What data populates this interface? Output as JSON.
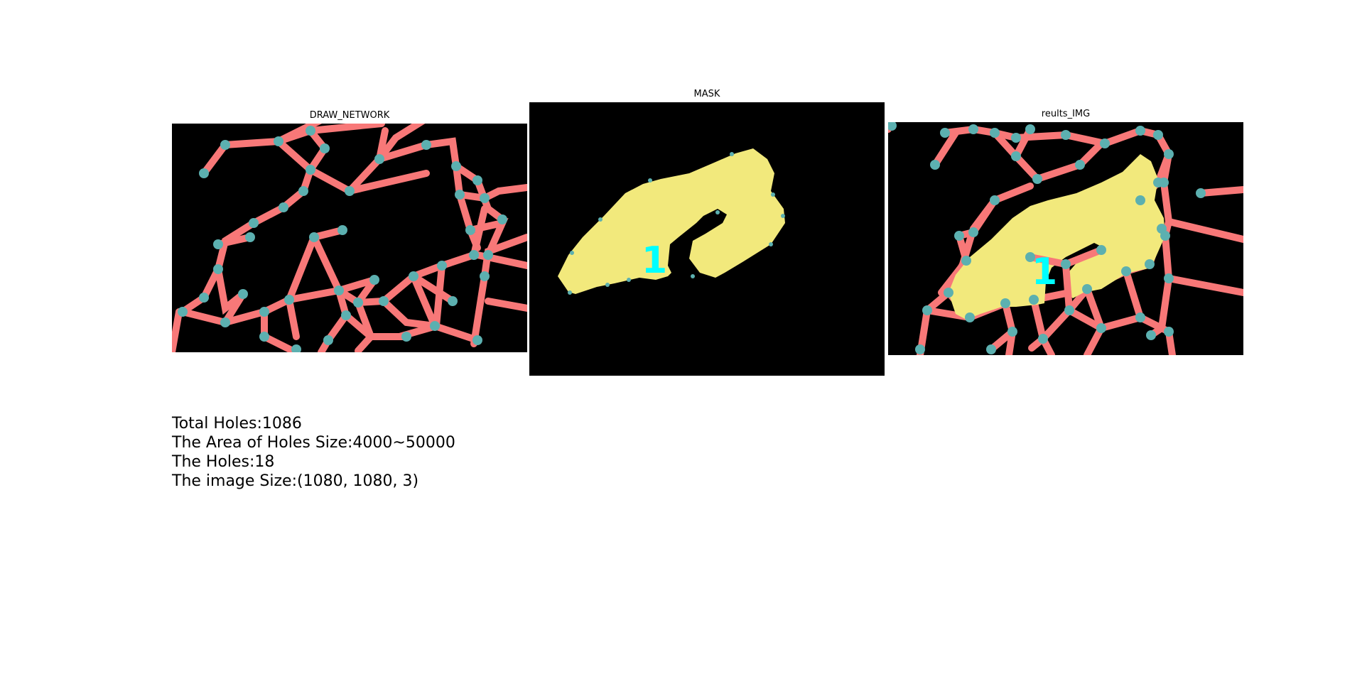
{
  "panels": [
    {
      "title": "DRAW_NETWORK"
    },
    {
      "title": "MASK"
    },
    {
      "title": "reults_IMG"
    }
  ],
  "info": {
    "total_holes": "Total Holes:1086",
    "area_range": "The Area of Holes Size:4000~50000",
    "holes": "The Holes:18",
    "image_size": "The image Size:(1080, 1080, 3)"
  },
  "labels": {
    "hole_number": "1"
  },
  "colors": {
    "background": "#000000",
    "edge": "#f87878",
    "node": "#5cb0b0",
    "hole_fill": "#f2e97c",
    "label": "#00ffff"
  }
}
